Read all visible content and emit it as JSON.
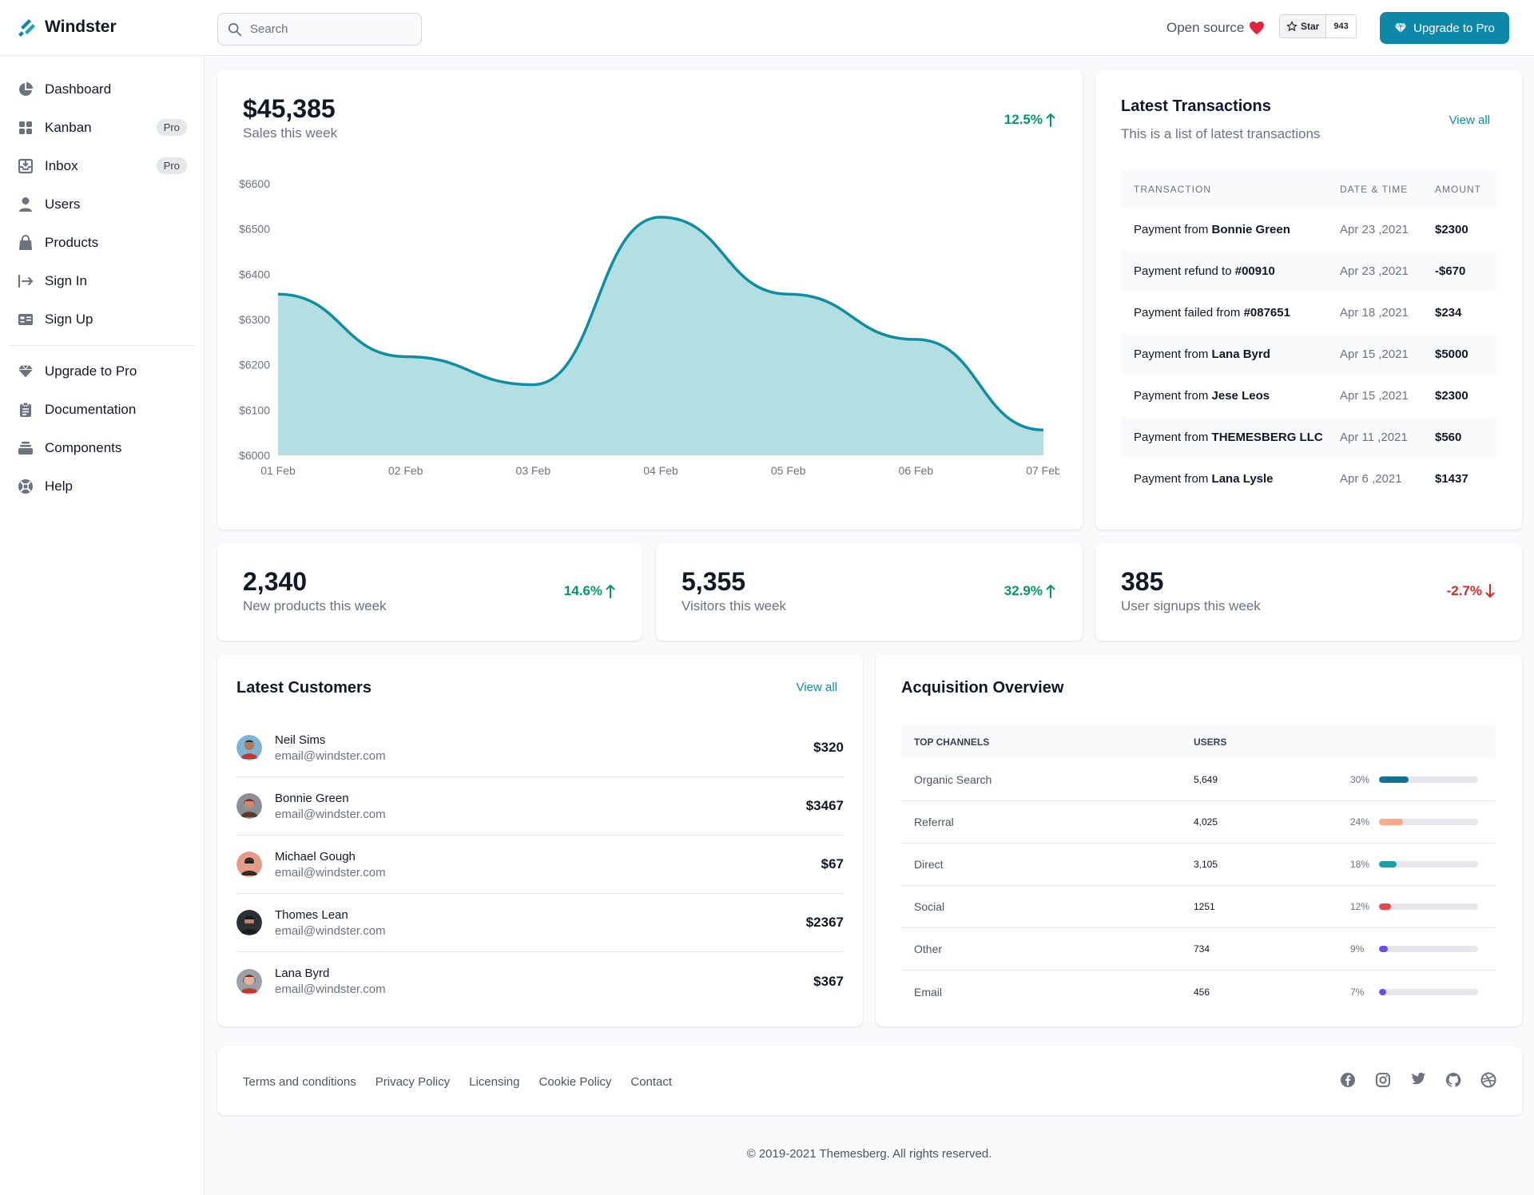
{
  "brand": {
    "name": "Windster",
    "accent": "#0e88a8"
  },
  "search": {
    "placeholder": "Search"
  },
  "header": {
    "open_source": "Open source",
    "star_label": "Star",
    "star_count": "943",
    "upgrade_label": "Upgrade to Pro"
  },
  "sidebar": {
    "items": [
      {
        "label": "Dashboard",
        "icon": "pie-chart-icon"
      },
      {
        "label": "Kanban",
        "icon": "grid-icon",
        "badge": "Pro"
      },
      {
        "label": "Inbox",
        "icon": "inbox-icon",
        "badge": "Pro"
      },
      {
        "label": "Users",
        "icon": "user-icon"
      },
      {
        "label": "Products",
        "icon": "shopping-bag-icon"
      },
      {
        "label": "Sign In",
        "icon": "sign-in-icon"
      },
      {
        "label": "Sign Up",
        "icon": "id-card-icon"
      }
    ],
    "secondary": [
      {
        "label": "Upgrade to Pro",
        "icon": "gem-icon"
      },
      {
        "label": "Documentation",
        "icon": "clipboard-icon"
      },
      {
        "label": "Components",
        "icon": "stack-icon"
      },
      {
        "label": "Help",
        "icon": "lifebuoy-icon"
      }
    ]
  },
  "sales": {
    "value": "$45,385",
    "label": "Sales this week",
    "trend": "12.5%"
  },
  "chart_data": {
    "type": "area",
    "categories": [
      "01 Feb",
      "02 Feb",
      "03 Feb",
      "04 Feb",
      "05 Feb",
      "06 Feb",
      "07 Feb"
    ],
    "series": [
      {
        "values": [
          6356,
          6218,
          6156,
          6526,
          6356,
          6256,
          6056
        ]
      }
    ],
    "ylim": [
      6000,
      6600
    ],
    "yticks": [
      "$6600",
      "$6500",
      "$6400",
      "$6300",
      "$6200",
      "$6100",
      "$6000"
    ],
    "xlabel": "",
    "ylabel": "",
    "color": "#0e8ea0",
    "fill": "#b4dfe2"
  },
  "transactions": {
    "title": "Latest Transactions",
    "subtitle": "This is a list of latest transactions",
    "view_all": "View all",
    "columns": [
      "TRANSACTION",
      "DATE & TIME",
      "AMOUNT"
    ],
    "rows": [
      {
        "prefix": "Payment from ",
        "who": "Bonnie Green",
        "date": "Apr 23 ,2021",
        "amount": "$2300"
      },
      {
        "prefix": "Payment refund to ",
        "who": "#00910",
        "date": "Apr 23 ,2021",
        "amount": "-$670"
      },
      {
        "prefix": "Payment failed from ",
        "who": "#087651",
        "date": "Apr 18 ,2021",
        "amount": "$234"
      },
      {
        "prefix": "Payment from ",
        "who": "Lana Byrd",
        "date": "Apr 15 ,2021",
        "amount": "$5000"
      },
      {
        "prefix": "Payment from ",
        "who": "Jese Leos",
        "date": "Apr 15 ,2021",
        "amount": "$2300"
      },
      {
        "prefix": "Payment from ",
        "who": "THEMESBERG LLC",
        "date": "Apr 11 ,2021",
        "amount": "$560"
      },
      {
        "prefix": "Payment from ",
        "who": "Lana Lysle",
        "date": "Apr 6 ,2021",
        "amount": "$1437"
      }
    ]
  },
  "stats": [
    {
      "value": "2,340",
      "label": "New products this week",
      "trend": "14.6%",
      "direction": "up"
    },
    {
      "value": "5,355",
      "label": "Visitors this week",
      "trend": "32.9%",
      "direction": "up"
    },
    {
      "value": "385",
      "label": "User signups this week",
      "trend": "-2.7%",
      "direction": "down"
    }
  ],
  "customers": {
    "title": "Latest Customers",
    "view_all": "View all",
    "rows": [
      {
        "name": "Neil Sims",
        "email": "email@windster.com",
        "amount": "$320"
      },
      {
        "name": "Bonnie Green",
        "email": "email@windster.com",
        "amount": "$3467"
      },
      {
        "name": "Michael Gough",
        "email": "email@windster.com",
        "amount": "$67"
      },
      {
        "name": "Thomes Lean",
        "email": "email@windster.com",
        "amount": "$2367"
      },
      {
        "name": "Lana Byrd",
        "email": "email@windster.com",
        "amount": "$367"
      }
    ]
  },
  "acquisition": {
    "title": "Acquisition Overview",
    "columns": [
      "TOP CHANNELS",
      "USERS"
    ],
    "rows": [
      {
        "channel": "Organic Search",
        "users": "5,649",
        "percent": "30%",
        "fraction": 0.3,
        "color": "#0e7490"
      },
      {
        "channel": "Referral",
        "users": "4,025",
        "percent": "24%",
        "fraction": 0.24,
        "color": "#fca98b"
      },
      {
        "channel": "Direct",
        "users": "3,105",
        "percent": "18%",
        "fraction": 0.18,
        "color": "#17a2ab"
      },
      {
        "channel": "Social",
        "users": "1251",
        "percent": "12%",
        "fraction": 0.12,
        "color": "#e5484d"
      },
      {
        "channel": "Other",
        "users": "734",
        "percent": "9%",
        "fraction": 0.09,
        "color": "#6d4cea"
      },
      {
        "channel": "Email",
        "users": "456",
        "percent": "7%",
        "fraction": 0.07,
        "color": "#6d4cea"
      }
    ]
  },
  "footer": {
    "links": [
      "Terms and conditions",
      "Privacy Policy",
      "Licensing",
      "Cookie Policy",
      "Contact"
    ],
    "social": [
      "facebook-icon",
      "instagram-icon",
      "twitter-icon",
      "github-icon",
      "dribbble-icon"
    ],
    "copyright": "© 2019-2021 Themesberg. All rights reserved."
  }
}
